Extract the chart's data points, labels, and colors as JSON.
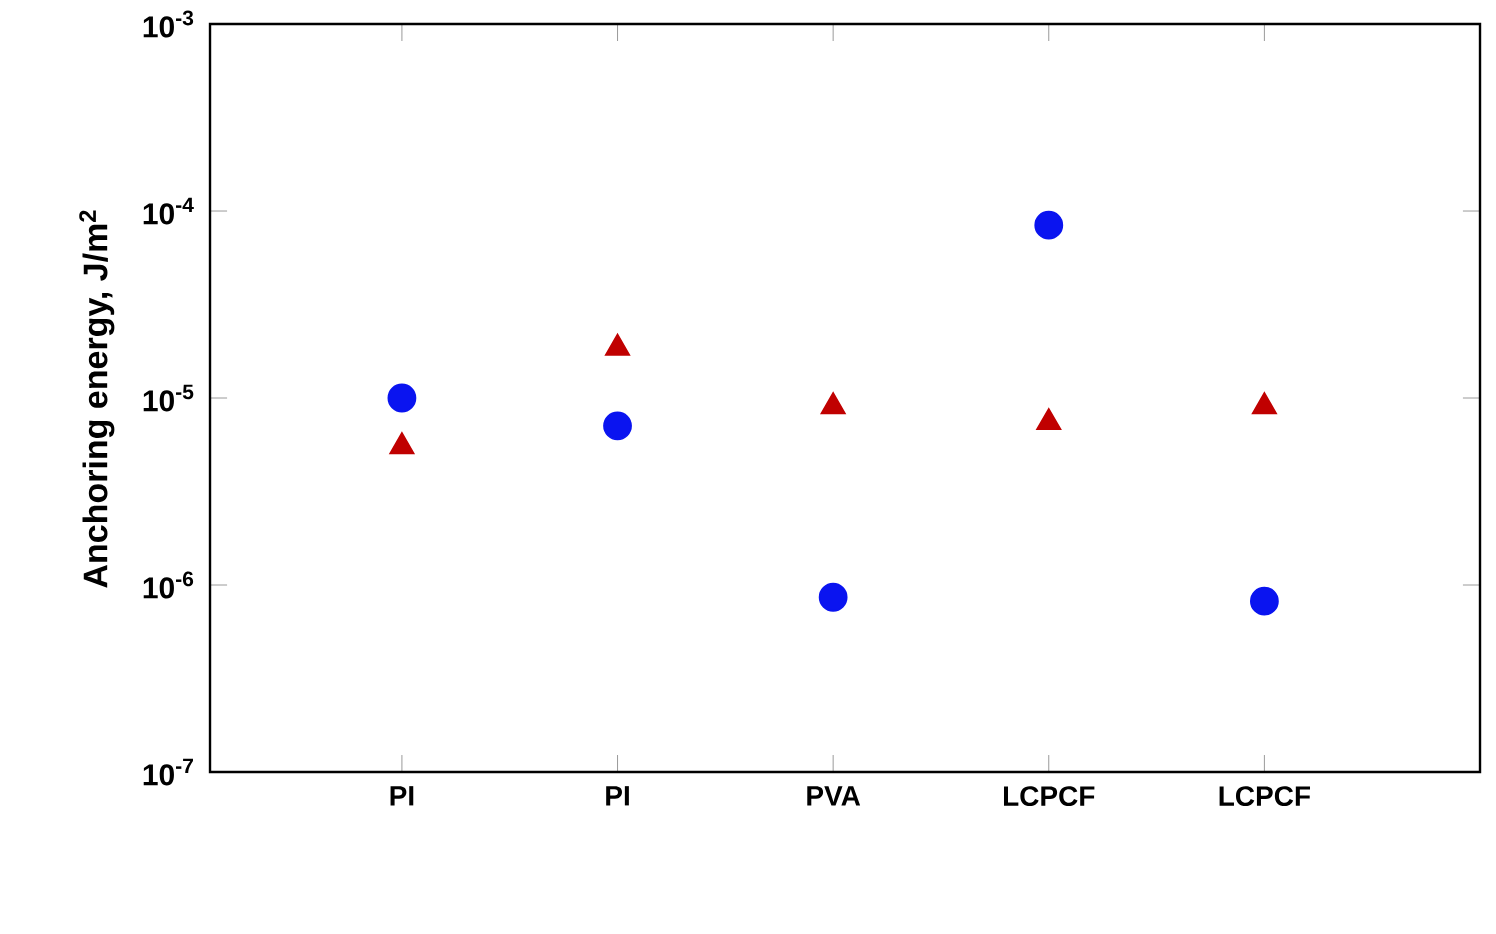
{
  "chart_data": {
    "type": "scatter",
    "ylabel": "Anchoring energy, J/m$^{2}$",
    "categories": [
      "PI",
      "PI",
      "PVA",
      "LCPCF",
      "LCPCF"
    ],
    "series": [
      {
        "color": "#0a14f0",
        "marker": "circle",
        "values": [
          1e-05,
          7.1e-06,
          8.6e-07,
          8.4e-05,
          8.2e-07
        ]
      },
      {
        "color": "#c00000",
        "marker": "triangle",
        "values": [
          5.5e-06,
          1.85e-05,
          9e-06,
          7.4e-06,
          9e-06
        ]
      }
    ],
    "log": "y",
    "ylim": [
      1e-07,
      0.001
    ],
    "yticks": [
      {
        "value": 1e-07,
        "label": "10$^{-7}$"
      },
      {
        "value": 1e-06,
        "label": "10$^{-6}$"
      },
      {
        "value": 1e-05,
        "label": "10$^{-5}$"
      },
      {
        "value": 0.0001,
        "label": "10$^{-4}$"
      },
      {
        "value": 0.001,
        "label": "10$^{-3}$"
      }
    ],
    "grid": false
  }
}
